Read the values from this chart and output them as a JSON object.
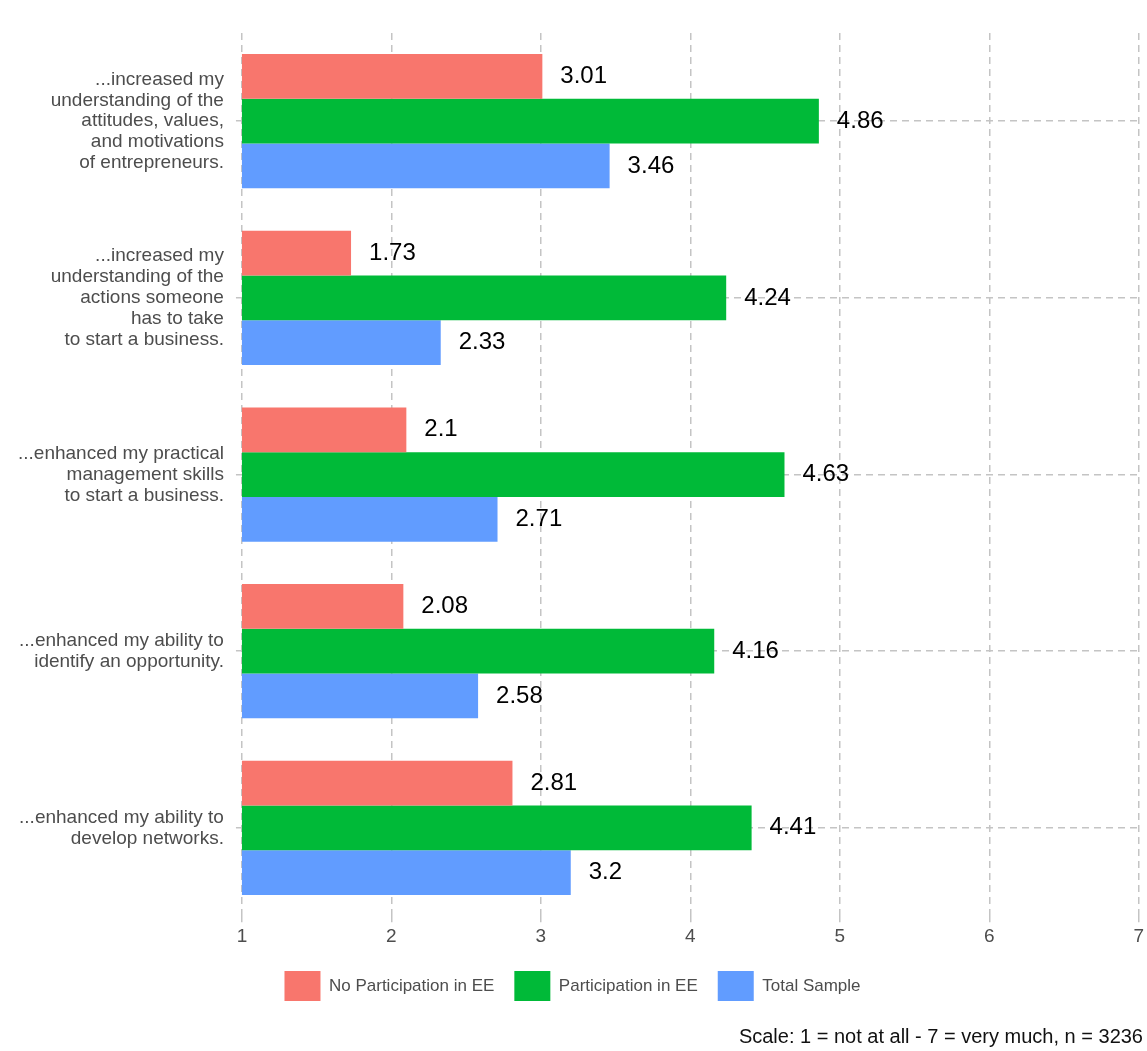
{
  "chart_data": {
    "type": "bar",
    "orientation": "horizontal",
    "categories": [
      "...increased my\nunderstanding of the\nattitudes, values,\nand motivations\nof entrepreneurs.",
      "...increased my\nunderstanding of the\nactions someone\nhas to take\nto start a business.",
      "...enhanced my practical\nmanagement skills\nto start a business.",
      "...enhanced my ability to\nidentify an opportunity.",
      "...enhanced my ability to\ndevelop networks."
    ],
    "series": [
      {
        "name": "No Participation in EE",
        "color": "#f8766d",
        "values": [
          3.01,
          1.73,
          2.1,
          2.08,
          2.81
        ]
      },
      {
        "name": "Participation in EE",
        "color": "#00ba38",
        "values": [
          4.86,
          4.24,
          4.63,
          4.16,
          4.41
        ]
      },
      {
        "name": "Total Sample",
        "color": "#619cff",
        "values": [
          3.46,
          2.33,
          2.71,
          2.58,
          3.2
        ]
      }
    ],
    "xlim": [
      1,
      7
    ],
    "xticks": [
      1,
      2,
      3,
      4,
      5,
      6,
      7
    ],
    "grid": true,
    "legend": "bottom",
    "data_labels": true,
    "annotations": [
      "Scale: 1 = not at all - 7 = very much, n = 3236"
    ]
  }
}
